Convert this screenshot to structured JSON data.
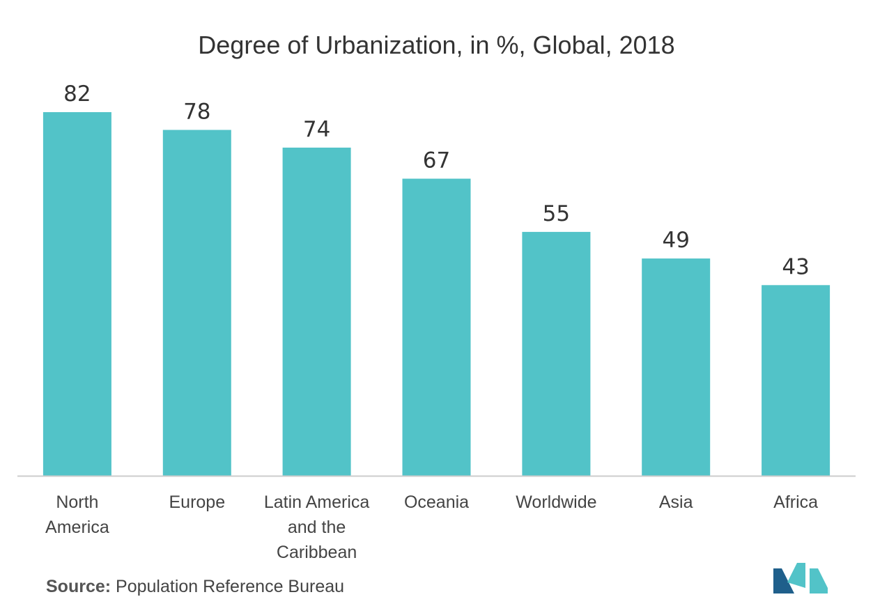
{
  "chart_data": {
    "type": "bar",
    "title": "Degree of Urbanization, in %, Global, 2018",
    "categories": [
      [
        "North",
        "America"
      ],
      [
        "Europe"
      ],
      [
        "Latin America",
        "and the",
        "Caribbean"
      ],
      [
        "Oceania"
      ],
      [
        "Worldwide"
      ],
      [
        "Asia"
      ],
      [
        "Africa"
      ]
    ],
    "values": [
      82,
      78,
      74,
      67,
      55,
      49,
      43
    ],
    "data_labels": [
      "82",
      "78",
      "74",
      "67",
      "55",
      "49",
      "43"
    ],
    "xlabel": "",
    "ylabel": "",
    "ylim": [
      0,
      82
    ],
    "grid": false,
    "bar_color": "#52c3c8",
    "axis_color": "#cccccc"
  },
  "source": {
    "label": "Source:",
    "text": "Population Reference Bureau"
  },
  "logo": {
    "icon": "mordor-intelligence-logo",
    "colors": [
      "#1f5f8b",
      "#52c3c8"
    ]
  }
}
